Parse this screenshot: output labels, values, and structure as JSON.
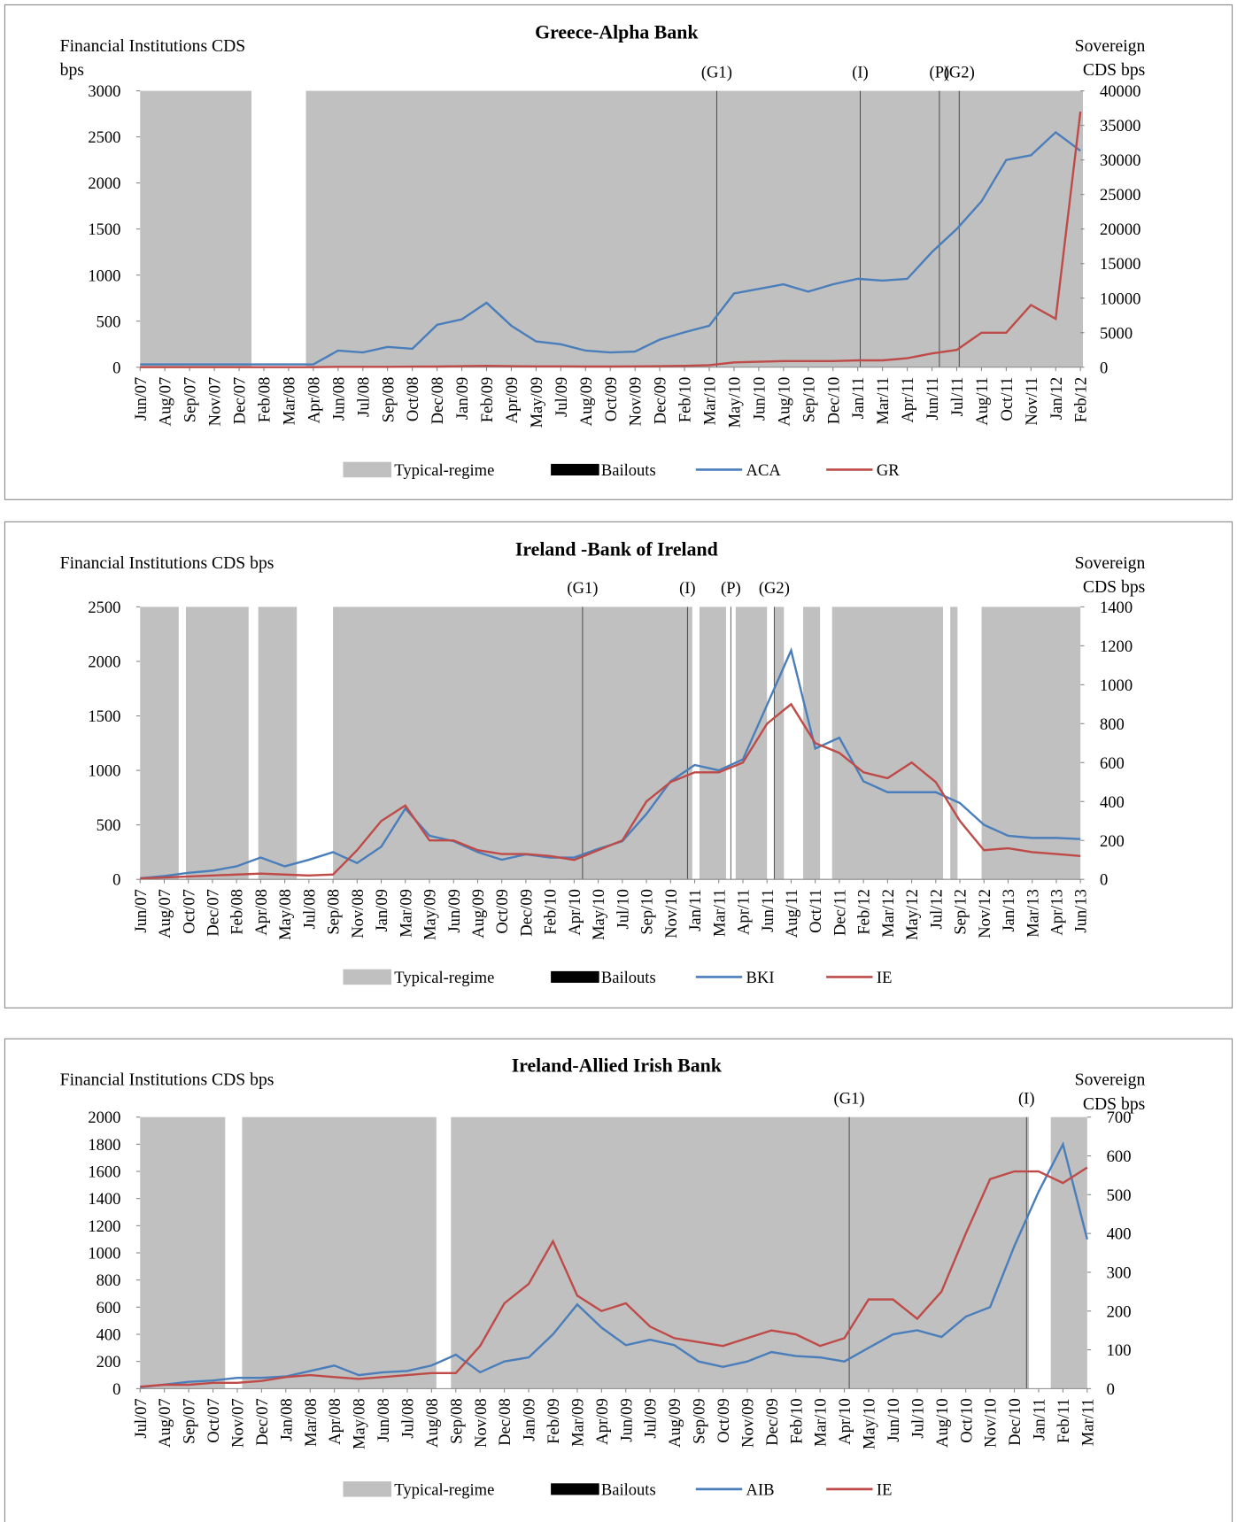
{
  "chart_data": [
    {
      "type": "line",
      "title": "Greece-Alpha Bank",
      "y_label": "Financial Institutions CDS bps",
      "y2_label": "Sovereign CDS bps",
      "categories": [
        "Jun/07",
        "Aug/07",
        "Sep/07",
        "Nov/07",
        "Dec/07",
        "Feb/08",
        "Mar/08",
        "Apr/08",
        "Jun/08",
        "Jul/08",
        "Sep/08",
        "Oct/08",
        "Dec/08",
        "Jan/09",
        "Feb/09",
        "Apr/09",
        "May/09",
        "Jul/09",
        "Aug/09",
        "Oct/09",
        "Nov/09",
        "Dec/09",
        "Feb/10",
        "Mar/10",
        "May/10",
        "Jun/10",
        "Aug/10",
        "Sep/10",
        "Dec/10",
        "Jan/11",
        "Mar/11",
        "Apr/11",
        "Jun/11",
        "Jul/11",
        "Aug/11",
        "Oct/11",
        "Nov/11",
        "Jan/12",
        "Feb/12"
      ],
      "series": [
        {
          "name": "ACA",
          "color": "#4a7ebb",
          "values": [
            30,
            30,
            30,
            30,
            30,
            30,
            30,
            30,
            180,
            160,
            220,
            200,
            460,
            520,
            700,
            450,
            280,
            250,
            180,
            160,
            170,
            300,
            380,
            450,
            800,
            850,
            900,
            820,
            900,
            960,
            940,
            960,
            1250,
            1500,
            1800,
            2250,
            2300,
            2550,
            2350
          ]
        },
        {
          "name": "GR",
          "color": "#be4b48",
          "axis": "y2",
          "values": [
            20,
            20,
            20,
            20,
            20,
            20,
            20,
            20,
            50,
            50,
            60,
            80,
            100,
            150,
            200,
            150,
            120,
            120,
            100,
            100,
            120,
            150,
            200,
            300,
            700,
            800,
            900,
            900,
            900,
            1000,
            1000,
            1300,
            2000,
            2500,
            5000,
            5000,
            9000,
            7000,
            37000
          ]
        }
      ],
      "ylim": [
        0,
        3000
      ],
      "yticks": [
        0,
        500,
        1000,
        1500,
        2000,
        2500,
        3000
      ],
      "y2lim": [
        0,
        40000
      ],
      "y2ticks": [
        0,
        5000,
        10000,
        15000,
        20000,
        25000,
        30000,
        35000,
        40000
      ],
      "regime_label": "Typical-regime",
      "regime_color": "#c0c0c0",
      "regime_spans": [
        [
          0,
          4.5
        ],
        [
          6.7,
          38.1
        ]
      ],
      "event_label": "Bailouts",
      "event_color": "#000000",
      "events": [
        {
          "label": "(G1)",
          "x": 23.3
        },
        {
          "label": "(I)",
          "x": 29.1
        },
        {
          "label": "(P)",
          "x": 32.3
        },
        {
          "label": "(G2)",
          "x": 33.1
        }
      ]
    },
    {
      "type": "line",
      "title": "Ireland -Bank of Ireland",
      "y_label": "Financial Institutions CDS bps",
      "y2_label": "Sovereign CDS bps",
      "categories": [
        "Jun/07",
        "Aug/07",
        "Oct/07",
        "Dec/07",
        "Feb/08",
        "Apr/08",
        "May/08",
        "Jul/08",
        "Sep/08",
        "Nov/08",
        "Jan/09",
        "Mar/09",
        "May/09",
        "Jun/09",
        "Aug/09",
        "Oct/09",
        "Dec/09",
        "Feb/10",
        "Apr/10",
        "May/10",
        "Jul/10",
        "Sep/10",
        "Nov/10",
        "Jan/11",
        "Mar/11",
        "Apr/11",
        "Jun/11",
        "Aug/11",
        "Oct/11",
        "Dec/11",
        "Feb/12",
        "Mar/12",
        "May/12",
        "Jul/12",
        "Sep/12",
        "Nov/12",
        "Jan/13",
        "Mar/13",
        "Apr/13",
        "Jun/13"
      ],
      "series": [
        {
          "name": "BKI",
          "color": "#4a7ebb",
          "values": [
            10,
            30,
            60,
            80,
            120,
            200,
            120,
            180,
            250,
            150,
            300,
            650,
            400,
            350,
            250,
            180,
            230,
            200,
            200,
            280,
            350,
            600,
            900,
            1050,
            1000,
            1100,
            1600,
            2100,
            1200,
            1300,
            900,
            800,
            800,
            800,
            700,
            500,
            400,
            380,
            380,
            370
          ]
        },
        {
          "name": "IE",
          "color": "#be4b48",
          "axis": "y2",
          "values": [
            5,
            10,
            15,
            20,
            25,
            30,
            25,
            20,
            25,
            150,
            300,
            380,
            200,
            200,
            150,
            130,
            130,
            120,
            100,
            150,
            200,
            400,
            500,
            550,
            550,
            600,
            800,
            900,
            700,
            650,
            550,
            520,
            600,
            500,
            300,
            150,
            160,
            140,
            130,
            120
          ]
        }
      ],
      "ylim": [
        0,
        2500
      ],
      "yticks": [
        0,
        500,
        1000,
        1500,
        2000,
        2500
      ],
      "y2lim": [
        0,
        1400
      ],
      "y2ticks": [
        0,
        200,
        400,
        600,
        800,
        1000,
        1200,
        1400
      ],
      "regime_label": "Typical-regime",
      "regime_color": "#c0c0c0",
      "regime_spans": [
        [
          0,
          1.6
        ],
        [
          1.9,
          4.5
        ],
        [
          4.9,
          6.5
        ],
        [
          8.0,
          22.9
        ],
        [
          23.2,
          24.3
        ],
        [
          24.7,
          26.0
        ],
        [
          26.3,
          26.7
        ],
        [
          27.5,
          28.2
        ],
        [
          28.7,
          33.3
        ],
        [
          33.6,
          33.9
        ],
        [
          34.9,
          39
        ]
      ],
      "event_label": "Bailouts",
      "event_color": "#000000",
      "events": [
        {
          "label": "(G1)",
          "x": 18.35
        },
        {
          "label": "(I)",
          "x": 22.7
        },
        {
          "label": "(P)",
          "x": 24.5
        },
        {
          "label": "(G2)",
          "x": 26.3
        }
      ]
    },
    {
      "type": "line",
      "title": "Ireland-Allied Irish Bank",
      "y_label": "Financial Institutions CDS bps",
      "y2_label": "Sovereign CDS bps",
      "categories": [
        "Jul/07",
        "Aug/07",
        "Sep/07",
        "Oct/07",
        "Nov/07",
        "Dec/07",
        "Jan/08",
        "Mar/08",
        "Apr/08",
        "May/08",
        "Jun/08",
        "Jul/08",
        "Aug/08",
        "Sep/08",
        "Nov/08",
        "Dec/08",
        "Jan/09",
        "Feb/09",
        "Mar/09",
        "Apr/09",
        "Jun/09",
        "Jul/09",
        "Aug/09",
        "Sep/09",
        "Oct/09",
        "Nov/09",
        "Dec/09",
        "Feb/10",
        "Mar/10",
        "Apr/10",
        "May/10",
        "Jun/10",
        "Jul/10",
        "Aug/10",
        "Oct/10",
        "Nov/10",
        "Dec/10",
        "Jan/11",
        "Feb/11",
        "Mar/11"
      ],
      "series": [
        {
          "name": "AIB",
          "color": "#4a7ebb",
          "values": [
            10,
            30,
            50,
            60,
            80,
            80,
            90,
            130,
            170,
            100,
            120,
            130,
            170,
            250,
            120,
            200,
            230,
            400,
            620,
            450,
            320,
            360,
            320,
            200,
            160,
            200,
            270,
            240,
            230,
            200,
            300,
            400,
            430,
            380,
            530,
            600,
            1050,
            1450,
            1800,
            1100
          ]
        },
        {
          "name": "IE",
          "color": "#be4b48",
          "axis": "y2",
          "values": [
            5,
            10,
            10,
            15,
            15,
            20,
            30,
            35,
            30,
            25,
            30,
            35,
            40,
            40,
            110,
            220,
            270,
            380,
            240,
            200,
            220,
            160,
            130,
            120,
            110,
            130,
            150,
            140,
            110,
            130,
            230,
            230,
            180,
            250,
            400,
            540,
            560,
            560,
            530,
            570
          ]
        }
      ],
      "ylim": [
        0,
        2000
      ],
      "yticks": [
        0,
        200,
        400,
        600,
        800,
        1000,
        1200,
        1400,
        1600,
        1800,
        2000
      ],
      "y2lim": [
        0,
        700
      ],
      "y2ticks": [
        0,
        100,
        200,
        300,
        400,
        500,
        600,
        700
      ],
      "regime_label": "Typical-regime",
      "regime_color": "#c0c0c0",
      "regime_spans": [
        [
          0,
          3.5
        ],
        [
          4.2,
          12.2
        ],
        [
          12.8,
          36.6
        ],
        [
          37.5,
          39
        ]
      ],
      "event_label": "Bailouts",
      "event_color": "#000000",
      "events": [
        {
          "label": "(G1)",
          "x": 29.2
        },
        {
          "label": "(I)",
          "x": 36.5
        }
      ]
    }
  ]
}
